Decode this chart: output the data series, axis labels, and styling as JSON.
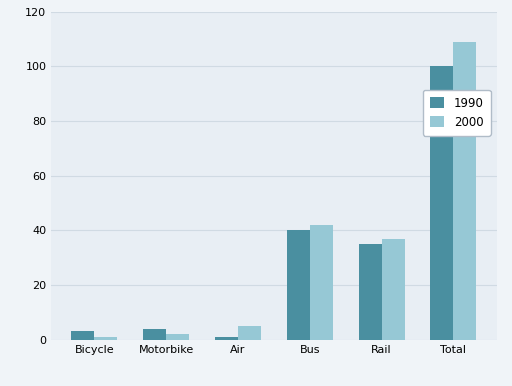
{
  "categories": [
    "Bicycle",
    "Motorbike",
    "Air",
    "Bus",
    "Rail",
    "Total"
  ],
  "values_1990": [
    3,
    4,
    1,
    40,
    35,
    100
  ],
  "values_2000": [
    1,
    2,
    5,
    42,
    37,
    109
  ],
  "color_1990": "#4a8fa0",
  "color_2000": "#96c8d5",
  "legend_labels": [
    "1990",
    "2000"
  ],
  "ylim": [
    0,
    120
  ],
  "yticks": [
    0,
    20,
    40,
    60,
    80,
    100,
    120
  ],
  "plot_bg_color": "#e8eef4",
  "figure_bg_color": "#f0f4f8",
  "grid_color": "#d0dae3",
  "bar_width": 0.32,
  "legend_fontsize": 8.5,
  "tick_fontsize": 8,
  "figsize": [
    5.12,
    3.86
  ],
  "dpi": 100
}
